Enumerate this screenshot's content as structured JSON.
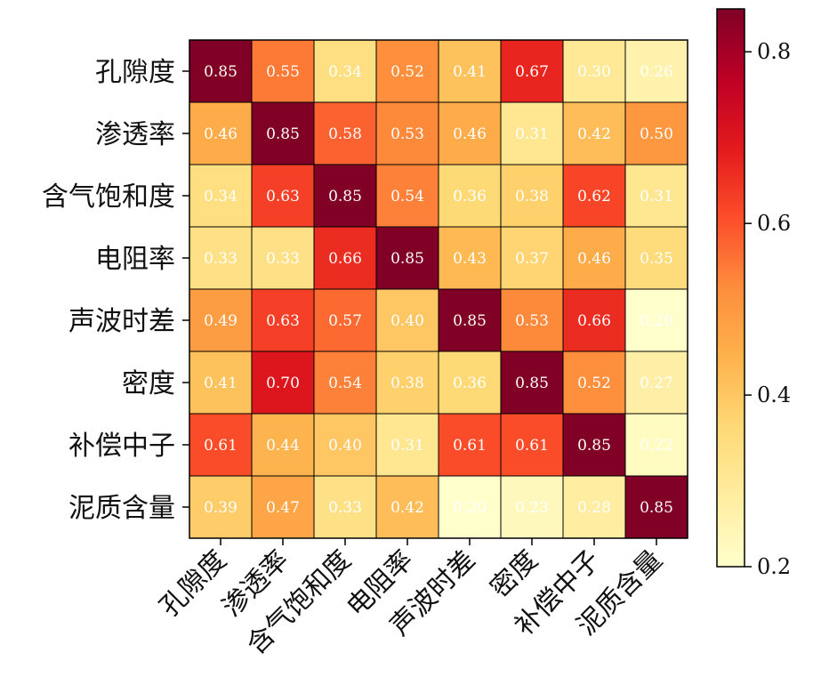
{
  "chart_data": {
    "type": "heatmap",
    "title": "",
    "xlabel": "",
    "ylabel": "",
    "rows": [
      "孔隙度",
      "渗透率",
      "含气饱和度",
      "电阻率",
      "声波时差",
      "密度",
      "补偿中子",
      "泥质含量"
    ],
    "cols": [
      "孔隙度",
      "渗透率",
      "含气饱和度",
      "电阻率",
      "声波时差",
      "密度",
      "补偿中子",
      "泥质含量"
    ],
    "values": [
      [
        0.85,
        0.55,
        0.34,
        0.52,
        0.41,
        0.67,
        0.3,
        0.26
      ],
      [
        0.46,
        0.85,
        0.58,
        0.53,
        0.46,
        0.31,
        0.42,
        0.5
      ],
      [
        0.34,
        0.63,
        0.85,
        0.54,
        0.36,
        0.38,
        0.62,
        0.31
      ],
      [
        0.33,
        0.33,
        0.66,
        0.85,
        0.43,
        0.37,
        0.46,
        0.35
      ],
      [
        0.49,
        0.63,
        0.57,
        0.4,
        0.85,
        0.53,
        0.66,
        0.2
      ],
      [
        0.41,
        0.7,
        0.54,
        0.38,
        0.36,
        0.85,
        0.52,
        0.27
      ],
      [
        0.61,
        0.44,
        0.4,
        0.31,
        0.61,
        0.61,
        0.85,
        0.22
      ],
      [
        0.39,
        0.47,
        0.33,
        0.42,
        0.2,
        0.23,
        0.28,
        0.85
      ]
    ],
    "value_labels": [
      [
        "0.85",
        "0.55",
        "0.34",
        "0.52",
        "0.41",
        "0.67",
        "0.30",
        "0.26"
      ],
      [
        "0.46",
        "0.85",
        "0.58",
        "0.53",
        "0.46",
        "0.31",
        "0.42",
        "0.50"
      ],
      [
        "0.34",
        "0.63",
        "0.85",
        "0.54",
        "0.36",
        "0.38",
        "0.62",
        "0.31"
      ],
      [
        "0.33",
        "0.33",
        "0.66",
        "0.85",
        "0.43",
        "0.37",
        "0.46",
        "0.35"
      ],
      [
        "0.49",
        "0.63",
        "0.57",
        "0.40",
        "0.85",
        "0.53",
        "0.66",
        "0.20"
      ],
      [
        "0.41",
        "0.70",
        "0.54",
        "0.38",
        "0.36",
        "0.85",
        "0.52",
        "0.27"
      ],
      [
        "0.61",
        "0.44",
        "0.40",
        "0.31",
        "0.61",
        "0.61",
        "0.85",
        "0.22"
      ],
      [
        "0.39",
        "0.47",
        "0.33",
        "0.42",
        "0.20",
        "0.23",
        "0.28",
        "0.85"
      ]
    ],
    "colorbar": {
      "vmin": 0.2,
      "vmax": 0.85,
      "ticks": [
        0.2,
        0.4,
        0.6,
        0.8
      ],
      "tick_labels": [
        "0.2",
        "0.4",
        "0.6",
        "0.8"
      ],
      "colormap": "YlOrRd",
      "colormap_stops": [
        "#ffffcc",
        "#ffeda0",
        "#fed976",
        "#feb24c",
        "#fd8d3c",
        "#fc4e2a",
        "#e31a1c",
        "#bd0026",
        "#800026"
      ]
    },
    "cell_border_color": "#000000",
    "label_color": "#ffffff",
    "grid": false
  }
}
